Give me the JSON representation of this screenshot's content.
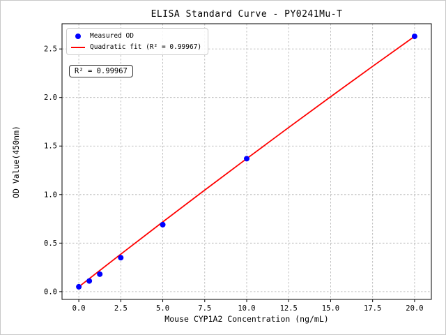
{
  "chart_data": {
    "type": "scatter",
    "title": "ELISA Standard Curve - PY0241Mu-T",
    "xlabel": "Mouse CYP1A2 Concentration (ng/mL)",
    "ylabel": "OD Value(450nm)",
    "xlim": [
      -1,
      21
    ],
    "ylim": [
      -0.08,
      2.76
    ],
    "xticks": [
      0,
      2.5,
      5,
      7.5,
      10,
      12.5,
      15,
      17.5,
      20
    ],
    "yticks": [
      0,
      0.5,
      1,
      1.5,
      2,
      2.5
    ],
    "grid": true,
    "legend_position": "upper left",
    "annotation": "R² = 0.99967",
    "colors": {
      "scatter": "#0000ff",
      "line": "#ff0000",
      "grid": "#b0b0b0",
      "frame": "#000000"
    },
    "series": [
      {
        "name": "Measured OD",
        "type": "scatter",
        "color": "#0000ff",
        "x": [
          0,
          0.625,
          1.25,
          2.5,
          5,
          10,
          20
        ],
        "y": [
          0.05,
          0.11,
          0.18,
          0.35,
          0.69,
          1.37,
          2.63
        ]
      },
      {
        "name": "Quadratic fit (R² = 0.99967)",
        "type": "line",
        "color": "#ff0000",
        "x": [
          0,
          2.5,
          5,
          7.5,
          10,
          12.5,
          15,
          17.5,
          20
        ],
        "y": [
          0.05,
          0.386,
          0.718,
          1.046,
          1.37,
          1.691,
          2.008,
          2.321,
          2.63
        ]
      }
    ]
  }
}
